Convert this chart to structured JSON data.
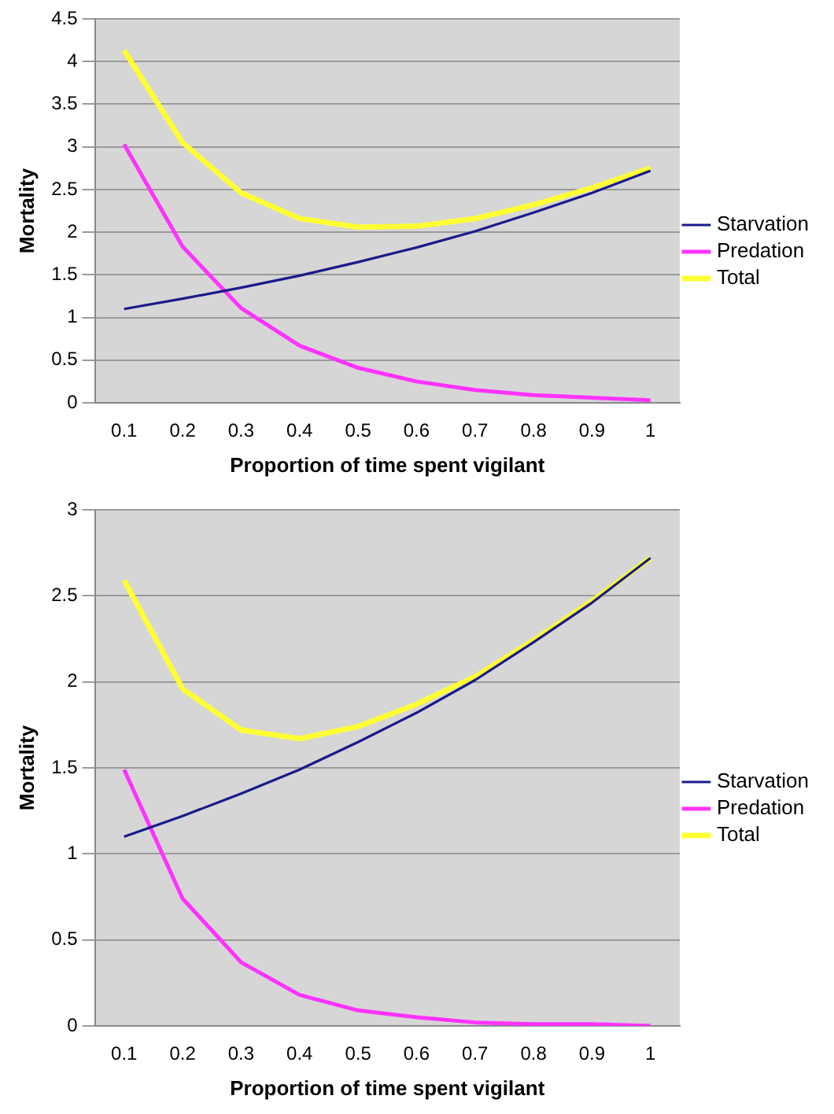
{
  "chart_data": [
    {
      "type": "line",
      "xlabel": "Proportion of time spent vigilant",
      "ylabel": "Mortality",
      "categories": [
        "0.1",
        "0.2",
        "0.3",
        "0.4",
        "0.5",
        "0.6",
        "0.7",
        "0.8",
        "0.9",
        "1"
      ],
      "ylim": [
        0,
        4.5
      ],
      "yticks": [
        0,
        0.5,
        1,
        1.5,
        2,
        2.5,
        3,
        3.5,
        4,
        4.5
      ],
      "grid": "y",
      "legend": "right",
      "marker": "none",
      "series": [
        {
          "name": "Starvation",
          "color": "#1a1a8c",
          "values": [
            1.1,
            1.22,
            1.35,
            1.49,
            1.65,
            1.82,
            2.01,
            2.23,
            2.46,
            2.72
          ]
        },
        {
          "name": "Predation",
          "color": "#ff33ff",
          "values": [
            3.03,
            1.83,
            1.11,
            0.67,
            0.41,
            0.25,
            0.15,
            0.09,
            0.06,
            0.03
          ]
        },
        {
          "name": "Total",
          "color": "#ffff33",
          "values": [
            4.13,
            3.05,
            2.46,
            2.16,
            2.06,
            2.07,
            2.16,
            2.32,
            2.52,
            2.75
          ]
        }
      ]
    },
    {
      "type": "line",
      "xlabel": "Proportion of time spent vigilant",
      "ylabel": "Mortality",
      "categories": [
        "0.1",
        "0.2",
        "0.3",
        "0.4",
        "0.5",
        "0.6",
        "0.7",
        "0.8",
        "0.9",
        "1"
      ],
      "ylim": [
        0,
        3
      ],
      "yticks": [
        0,
        0.5,
        1,
        1.5,
        2,
        2.5,
        3
      ],
      "grid": "y",
      "legend": "right",
      "marker": "none",
      "series": [
        {
          "name": "Starvation",
          "color": "#1a1a8c",
          "values": [
            1.1,
            1.22,
            1.35,
            1.49,
            1.65,
            1.82,
            2.01,
            2.23,
            2.46,
            2.72
          ]
        },
        {
          "name": "Predation",
          "color": "#ff33ff",
          "values": [
            1.49,
            0.74,
            0.37,
            0.18,
            0.09,
            0.05,
            0.02,
            0.01,
            0.01,
            0
          ]
        },
        {
          "name": "Total",
          "color": "#ffff33",
          "values": [
            2.59,
            1.96,
            1.72,
            1.67,
            1.74,
            1.87,
            2.03,
            2.24,
            2.47,
            2.72
          ]
        }
      ]
    }
  ]
}
